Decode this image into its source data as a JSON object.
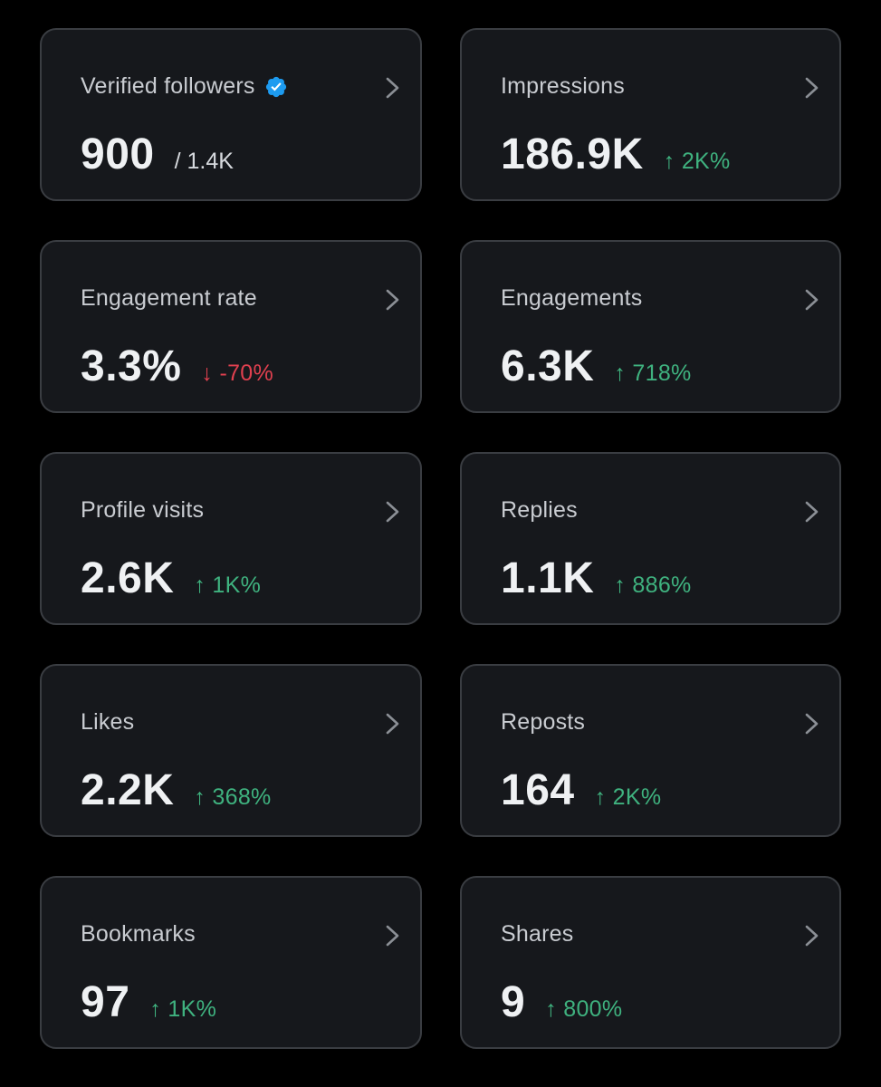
{
  "colors": {
    "background": "#000000",
    "card_background": "#16181c",
    "card_border": "#3a3d42",
    "positive": "#3fb27f",
    "negative": "#e0404f",
    "verified_badge": "#1d9bf0"
  },
  "cards": [
    {
      "label": "Verified followers",
      "value": "900",
      "sub": "/ 1.4K",
      "change": "",
      "direction": "",
      "icon": "verified-badge-icon"
    },
    {
      "label": "Impressions",
      "value": "186.9K",
      "sub": "",
      "change": "↑ 2K%",
      "direction": "up"
    },
    {
      "label": "Engagement rate",
      "value": "3.3%",
      "sub": "",
      "change": "↓ -70%",
      "direction": "down"
    },
    {
      "label": "Engagements",
      "value": "6.3K",
      "sub": "",
      "change": "↑ 718%",
      "direction": "up"
    },
    {
      "label": "Profile visits",
      "value": "2.6K",
      "sub": "",
      "change": "↑ 1K%",
      "direction": "up"
    },
    {
      "label": "Replies",
      "value": "1.1K",
      "sub": "",
      "change": "↑ 886%",
      "direction": "up"
    },
    {
      "label": "Likes",
      "value": "2.2K",
      "sub": "",
      "change": "↑ 368%",
      "direction": "up"
    },
    {
      "label": "Reposts",
      "value": "164",
      "sub": "",
      "change": "↑ 2K%",
      "direction": "up"
    },
    {
      "label": "Bookmarks",
      "value": "97",
      "sub": "",
      "change": "↑ 1K%",
      "direction": "up"
    },
    {
      "label": "Shares",
      "value": "9",
      "sub": "",
      "change": "↑ 800%",
      "direction": "up"
    }
  ]
}
